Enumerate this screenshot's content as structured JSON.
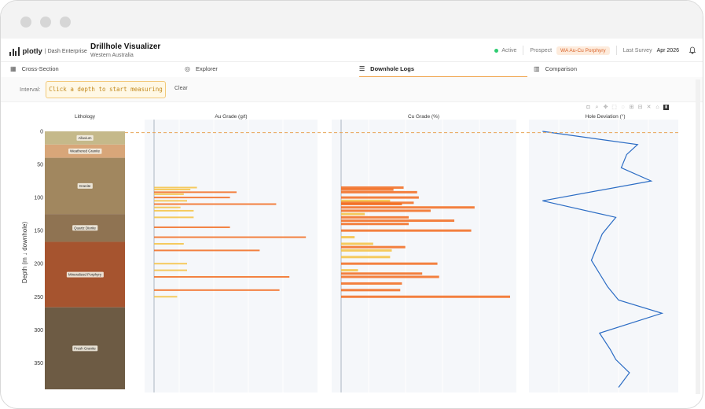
{
  "window": {
    "controls": [
      "close",
      "minimize",
      "maximize"
    ]
  },
  "brand": {
    "logo": "plotly",
    "product": "| Dash Enterprise"
  },
  "app": {
    "title": "Drillhole Visualizer",
    "subtitle": "Western Australia"
  },
  "header": {
    "status": "Active",
    "prospect_label": "Prospect",
    "prospect_value": "WA Au-Cu Porphyry",
    "survey_label": "Last Survey",
    "survey_value": "Apr 2026",
    "bell_icon": "bell-icon"
  },
  "tabs": [
    {
      "label": "Cross-Section",
      "icon": "grid-icon",
      "active": false
    },
    {
      "label": "Explorer",
      "icon": "compass-icon",
      "active": false
    },
    {
      "label": "Downhole Logs",
      "icon": "list-icon",
      "active": true
    },
    {
      "label": "Comparison",
      "icon": "columns-icon",
      "active": false
    }
  ],
  "measure": {
    "label": "Interval:",
    "prompt": "Click a depth to start measuring",
    "clear": "Clear"
  },
  "modebar": [
    "camera-icon",
    "zoom-icon",
    "pan-icon",
    "box-select-icon",
    "lasso-icon",
    "zoom-in-icon",
    "zoom-out-icon",
    "autoscale-icon",
    "reset-icon",
    "plotly-icon"
  ],
  "colors": {
    "accent": "#f0a44b",
    "bar_strong": "#f26b1d",
    "bar_weak": "#f5c242",
    "deviation": "#2b6cc4",
    "selection": "#e8a557"
  },
  "chart_data": {
    "type": "bar",
    "ylabel": "Depth (m ↓ downhole)",
    "ylim": [
      0,
      390
    ],
    "y_reversed": true,
    "yticks": [
      0,
      50,
      100,
      150,
      200,
      250,
      300,
      350
    ],
    "measure_depth": 2,
    "lithology": {
      "title": "Lithology",
      "units": [
        {
          "name": "Alluvium",
          "top": 0,
          "bottom": 20,
          "color": "#c5b98a"
        },
        {
          "name": "Weathered Granite",
          "top": 20,
          "bottom": 40,
          "color": "#d8a679"
        },
        {
          "name": "Granite",
          "top": 40,
          "bottom": 125,
          "color": "#a1875f"
        },
        {
          "name": "Quartz Diorite",
          "top": 125,
          "bottom": 167,
          "color": "#8f7352"
        },
        {
          "name": "Mineralized Porphyry",
          "top": 167,
          "bottom": 266,
          "color": "#a6542f"
        },
        {
          "name": "Fresh Granite",
          "top": 266,
          "bottom": 390,
          "color": "#6d5b44"
        }
      ]
    },
    "au": {
      "title": "Au Grade (g/t)",
      "depths": [
        85,
        88,
        92,
        95,
        100,
        105,
        110,
        115,
        120,
        130,
        145,
        160,
        170,
        180,
        200,
        210,
        220,
        240,
        250
      ],
      "values": [
        1.3,
        1.1,
        2.5,
        0.9,
        2.3,
        1.0,
        3.7,
        0.8,
        1.2,
        1.2,
        2.3,
        4.6,
        0.9,
        3.2,
        1.0,
        1.0,
        4.1,
        3.8,
        0.7
      ]
    },
    "cu": {
      "title": "Cu Grade (%)",
      "depths": [
        85,
        88,
        92,
        100,
        105,
        108,
        110,
        115,
        120,
        125,
        130,
        135,
        140,
        150,
        160,
        170,
        175,
        180,
        190,
        200,
        210,
        215,
        220,
        230,
        240,
        250
      ],
      "values": [
        0.37,
        0.31,
        0.45,
        0.46,
        0.29,
        0.43,
        0.36,
        0.79,
        0.53,
        0.14,
        0.4,
        0.67,
        0.4,
        0.77,
        0.08,
        0.19,
        0.38,
        0.3,
        0.29,
        0.57,
        0.1,
        0.48,
        0.58,
        0.36,
        0.35,
        1.0
      ]
    },
    "deviation": {
      "title": "Hole Deviation (°)",
      "depths": [
        0,
        20,
        35,
        55,
        75,
        105,
        130,
        155,
        195,
        235,
        255,
        275,
        305,
        330,
        345,
        365,
        387
      ],
      "values": [
        0.5,
        4.0,
        3.6,
        3.4,
        4.5,
        0.5,
        3.2,
        2.7,
        2.3,
        2.9,
        3.3,
        4.9,
        2.6,
        3.0,
        3.2,
        3.7,
        3.3
      ]
    }
  }
}
